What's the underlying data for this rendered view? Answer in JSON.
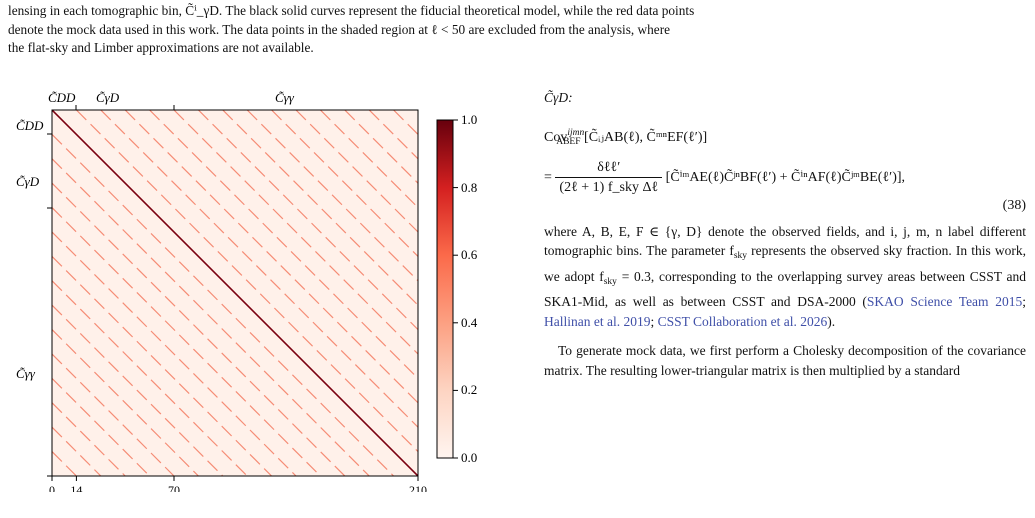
{
  "caption": {
    "line1": "lensing in each tomographic bin, C̃ⁱ_γD. The black solid curves represent the fiducial theoretical model, while the red data points",
    "line2": "denote the mock data used in this work. The data points in the shaded region at ℓ < 50 are excluded from the analysis, where",
    "line3": "the flat-sky and Limber approximations are not available."
  },
  "chart_data": {
    "type": "heatmap",
    "description_matrix": "correlation matrix of C̃ blocks, 210×210",
    "top_labels": [
      "C̃DD",
      "C̃γD",
      "C̃γγ"
    ],
    "left_labels": [
      "C̃DD",
      "C̃γD",
      "C̃γγ"
    ],
    "x_ticks": [
      "0",
      "14",
      "70",
      "210"
    ],
    "colorbar_ticks": [
      "1.0",
      "0.8",
      "0.6",
      "0.4",
      "0.2",
      "0.0"
    ],
    "colorbar_range": [
      0,
      1
    ],
    "colormap": "Reds",
    "n_bins": 210,
    "block_boundaries": [
      0,
      14,
      70,
      210
    ],
    "offdiag_period": 14
  },
  "text": {
    "label_intro": "C̃γD:",
    "eq_lhs": "Cov",
    "eq_lhs_sup": "ijmn",
    "eq_lhs_sub": "ABEF",
    "eq_lhs_args": "[C̃ᵢⱼAB(ℓ), C̃ᵐⁿEF(ℓ′)]",
    "eq_frac_num": "δℓℓ′",
    "eq_frac_den": "(2ℓ + 1) f_sky Δℓ",
    "eq_rhs": "[C̃ⁱᵐAE(ℓ)C̃ʲⁿBF(ℓ′) + C̃ⁱⁿAF(ℓ)C̃ʲᵐBE(ℓ′)],",
    "eq_number": "(38)",
    "para1_a": "where A, B, E, F ∈ {γ, D} denote the observed fields, and i, j, m, n label different tomographic bins. The parameter f",
    "para1_sky": "sky",
    "para1_b": " represents the observed sky fraction. In this work, we adopt f",
    "para1_b2": " = 0.3, corresponding to the overlapping survey areas between CSST and SKA1-Mid, as well as between CSST and DSA-2000 (",
    "cite1": "SKAO Science Team 2015",
    "cite_sep1": "; ",
    "cite2": "Hallinan et al. 2019",
    "cite_sep2": "; ",
    "cite3": "CSST Collaboration et al. 2026",
    "para1_end": ").",
    "para2": "To generate mock data, we first perform a Cholesky decomposition of the covariance matrix. The resulting lower-triangular matrix is then multiplied by a standard"
  }
}
